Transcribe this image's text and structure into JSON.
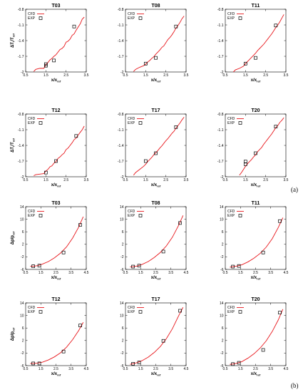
{
  "panel_labels": {
    "a": "(a)",
    "b": "(b)"
  },
  "legend": {
    "cfd": "CFD",
    "exp": "EXP"
  },
  "colors": {
    "cfd": "#e8161b",
    "exp": "#000000"
  },
  "chart_data": [
    {
      "id": "a-T03",
      "title": "T03",
      "type": "line",
      "xlabel": "x/x_ref",
      "ylabel": "ΔT_t/T_ref",
      "xlim": [
        0.5,
        3.5
      ],
      "ylim": [
        -2,
        -0.8
      ],
      "xticks": [
        "0.5",
        "1.5",
        "2.5",
        "3.5"
      ],
      "yticks": [
        "-2",
        "-1.7",
        "-1.4",
        "-1.1",
        "-0.8"
      ],
      "series": [
        {
          "name": "CFD",
          "x": [
            0.9,
            1.0,
            1.2,
            1.4,
            1.5,
            1.6,
            1.7,
            1.8,
            1.9,
            2.0,
            2.1,
            2.2,
            2.3,
            2.4,
            2.5,
            2.6,
            2.7,
            2.8,
            2.9,
            3.0,
            3.1,
            3.2,
            3.3,
            3.4
          ],
          "y": [
            -1.99,
            -1.95,
            -1.93,
            -1.93,
            -1.86,
            -1.82,
            -1.77,
            -1.74,
            -1.7,
            -1.67,
            -1.62,
            -1.57,
            -1.55,
            -1.51,
            -1.43,
            -1.41,
            -1.37,
            -1.3,
            -1.27,
            -1.2,
            -1.14,
            -1.08,
            -0.99,
            -0.95
          ]
        },
        {
          "name": "EXP",
          "x": [
            1.5,
            1.5,
            1.9,
            2.9
          ],
          "y": [
            -1.88,
            -1.85,
            -1.78,
            -1.13
          ]
        }
      ]
    },
    {
      "id": "a-T08",
      "title": "T08",
      "type": "line",
      "xlabel": "x/x_ref",
      "ylabel": "",
      "xlim": [
        0.5,
        3.5
      ],
      "ylim": [
        -2,
        -0.8
      ],
      "xticks": [
        "0.5",
        "1.5",
        "2.5",
        "3.5"
      ],
      "yticks": [
        "-2",
        "-1.7",
        "-1.4",
        "-1.1",
        "-0.8"
      ],
      "series": [
        {
          "name": "CFD",
          "x": [
            0.9,
            1.0,
            1.2,
            1.4,
            1.5,
            1.6,
            1.7,
            1.8,
            1.9,
            2.0,
            2.1,
            2.2,
            2.3,
            2.4,
            2.5,
            2.6,
            2.7,
            2.8,
            2.9,
            3.0,
            3.1,
            3.2,
            3.3,
            3.4
          ],
          "y": [
            -1.99,
            -1.95,
            -1.91,
            -1.88,
            -1.85,
            -1.81,
            -1.78,
            -1.74,
            -1.71,
            -1.66,
            -1.62,
            -1.58,
            -1.53,
            -1.5,
            -1.44,
            -1.38,
            -1.34,
            -1.29,
            -1.23,
            -1.16,
            -1.11,
            -1.05,
            -0.98,
            -0.93
          ]
        },
        {
          "name": "EXP",
          "x": [
            1.5,
            2.0,
            3.0
          ],
          "y": [
            -1.84,
            -1.73,
            -1.13
          ]
        }
      ]
    },
    {
      "id": "a-T11",
      "title": "T11",
      "type": "line",
      "xlabel": "x/x_ref",
      "ylabel": "",
      "xlim": [
        0.5,
        3.5
      ],
      "ylim": [
        -2,
        -0.8
      ],
      "xticks": [
        "0.5",
        "1.5",
        "2.5",
        "3.5"
      ],
      "yticks": [
        "-2",
        "-1.7",
        "-1.4",
        "-1.1",
        "-0.8"
      ],
      "series": [
        {
          "name": "CFD",
          "x": [
            0.9,
            1.0,
            1.2,
            1.4,
            1.5,
            1.6,
            1.7,
            1.8,
            1.9,
            2.0,
            2.1,
            2.2,
            2.3,
            2.4,
            2.5,
            2.6,
            2.7,
            2.8,
            2.9,
            3.0,
            3.1,
            3.2,
            3.3,
            3.4
          ],
          "y": [
            -2.0,
            -1.96,
            -1.93,
            -1.89,
            -1.84,
            -1.8,
            -1.76,
            -1.72,
            -1.68,
            -1.64,
            -1.59,
            -1.55,
            -1.51,
            -1.47,
            -1.42,
            -1.37,
            -1.32,
            -1.27,
            -1.21,
            -1.15,
            -1.1,
            -1.04,
            -0.97,
            -0.9
          ]
        },
        {
          "name": "EXP",
          "x": [
            1.5,
            2.0,
            3.0
          ],
          "y": [
            -1.84,
            -1.73,
            -1.11
          ]
        }
      ]
    },
    {
      "id": "a-T12",
      "title": "T12",
      "type": "line",
      "xlabel": "x/x_ref",
      "ylabel": "ΔT_t/T_ref",
      "xlim": [
        0.5,
        3.5
      ],
      "ylim": [
        -2,
        -0.8
      ],
      "xticks": [
        "0.5",
        "1.5",
        "2.5",
        "3.5"
      ],
      "yticks": [
        "-2",
        "-1.7",
        "-1.4",
        "-1.1",
        "-0.8"
      ],
      "series": [
        {
          "name": "CFD",
          "x": [
            0.9,
            1.0,
            1.2,
            1.4,
            1.5,
            1.6,
            1.7,
            1.8,
            1.9,
            2.0,
            2.1,
            2.2,
            2.3,
            2.4,
            2.5,
            2.6,
            2.7,
            2.8,
            2.9,
            3.0,
            3.1,
            3.2,
            3.3,
            3.4
          ],
          "y": [
            -1.98,
            -1.96,
            -1.95,
            -1.94,
            -1.89,
            -1.86,
            -1.81,
            -1.79,
            -1.74,
            -1.71,
            -1.65,
            -1.62,
            -1.58,
            -1.55,
            -1.48,
            -1.45,
            -1.4,
            -1.35,
            -1.29,
            -1.26,
            -1.2,
            -1.15,
            -1.1,
            -1.03
          ]
        },
        {
          "name": "EXP",
          "x": [
            1.5,
            2.0,
            3.0
          ],
          "y": [
            -1.92,
            -1.7,
            -1.22
          ]
        }
      ]
    },
    {
      "id": "a-T17",
      "title": "T17",
      "type": "line",
      "xlabel": "x/x_ref",
      "ylabel": "",
      "xlim": [
        0.5,
        3.5
      ],
      "ylim": [
        -2,
        -0.8
      ],
      "xticks": [
        "0.5",
        "1.5",
        "2.5",
        "3.5"
      ],
      "yticks": [
        "-2",
        "-1.7",
        "-1.4",
        "-1.1",
        "-0.8"
      ],
      "series": [
        {
          "name": "CFD",
          "x": [
            0.9,
            1.0,
            1.2,
            1.4,
            1.5,
            1.6,
            1.7,
            1.8,
            1.9,
            2.0,
            2.1,
            2.2,
            2.3,
            2.4,
            2.5,
            2.6,
            2.7,
            2.8,
            2.9,
            3.0,
            3.1,
            3.2,
            3.3,
            3.4
          ],
          "y": [
            -1.97,
            -1.92,
            -1.86,
            -1.8,
            -1.76,
            -1.71,
            -1.67,
            -1.63,
            -1.58,
            -1.54,
            -1.5,
            -1.45,
            -1.41,
            -1.36,
            -1.31,
            -1.27,
            -1.22,
            -1.17,
            -1.13,
            -1.07,
            -1.02,
            -0.97,
            -0.91,
            -0.86
          ]
        },
        {
          "name": "EXP",
          "x": [
            1.5,
            2.0,
            3.0
          ],
          "y": [
            -1.7,
            -1.55,
            -1.05
          ]
        }
      ]
    },
    {
      "id": "a-T20",
      "title": "T20",
      "type": "line",
      "xlabel": "x/x_ref",
      "ylabel": "",
      "xlim": [
        0.5,
        3.5
      ],
      "ylim": [
        -2,
        -0.8
      ],
      "xticks": [
        "0.5",
        "1.5",
        "2.5",
        "3.5"
      ],
      "yticks": [
        "-2",
        "-1.7",
        "-1.4",
        "-1.1",
        "-0.8"
      ],
      "series": [
        {
          "name": "CFD",
          "x": [
            1.2,
            1.3,
            1.4,
            1.5,
            1.6,
            1.7,
            1.8,
            1.9,
            2.0,
            2.1,
            2.2,
            2.3,
            2.4,
            2.5,
            2.6,
            2.7,
            2.8,
            2.9,
            3.0,
            3.1,
            3.2,
            3.3,
            3.4
          ],
          "y": [
            -1.97,
            -1.92,
            -1.86,
            -1.8,
            -1.75,
            -1.71,
            -1.67,
            -1.62,
            -1.58,
            -1.52,
            -1.48,
            -1.44,
            -1.38,
            -1.33,
            -1.28,
            -1.23,
            -1.18,
            -1.12,
            -1.06,
            -1.02,
            -0.96,
            -0.92,
            -0.87
          ]
        },
        {
          "name": "EXP",
          "x": [
            1.5,
            1.5,
            2.0,
            3.0
          ],
          "y": [
            -1.71,
            -1.76,
            -1.55,
            -1.04
          ]
        }
      ]
    },
    {
      "id": "b-T03",
      "title": "T03",
      "type": "line",
      "xlabel": "x/x_ref",
      "ylabel": "Δp/p_ref",
      "xlim": [
        0.5,
        4.5
      ],
      "ylim": [
        -6,
        14
      ],
      "xticks": [
        "0.5",
        "1.5",
        "2.5",
        "3.5",
        "4.5"
      ],
      "yticks": [
        "-6",
        "-2",
        "2",
        "6",
        "10",
        "14"
      ],
      "series": [
        {
          "name": "CFD",
          "x": [
            0.8,
            1.0,
            1.3,
            1.6,
            2.0,
            2.4,
            2.8,
            3.2,
            3.6,
            4.0,
            4.3
          ],
          "y": [
            -5.0,
            -5.0,
            -4.8,
            -4.3,
            -3.5,
            -2.3,
            -0.8,
            1.2,
            4.0,
            7.5,
            10.8
          ]
        },
        {
          "name": "EXP",
          "x": [
            1.0,
            1.4,
            3.0,
            4.1
          ],
          "y": [
            -5.0,
            -4.8,
            -0.6,
            8.2
          ]
        }
      ]
    },
    {
      "id": "b-T08",
      "title": "T08",
      "type": "line",
      "xlabel": "x/x_ref",
      "ylabel": "",
      "xlim": [
        0.5,
        4.5
      ],
      "ylim": [
        -6,
        14
      ],
      "xticks": [
        "0.5",
        "1.5",
        "2.5",
        "3.5",
        "4.5"
      ],
      "yticks": [
        "-6",
        "-2",
        "2",
        "6",
        "10",
        "14"
      ],
      "series": [
        {
          "name": "CFD",
          "x": [
            0.8,
            1.0,
            1.3,
            1.6,
            2.0,
            2.4,
            2.8,
            3.2,
            3.6,
            4.0,
            4.3
          ],
          "y": [
            -5.2,
            -5.1,
            -4.9,
            -4.4,
            -3.5,
            -2.2,
            -0.6,
            1.5,
            4.3,
            8.0,
            11.2
          ]
        },
        {
          "name": "EXP",
          "x": [
            1.0,
            1.4,
            3.0,
            4.1
          ],
          "y": [
            -5.1,
            -4.8,
            -0.3,
            8.8
          ]
        }
      ]
    },
    {
      "id": "b-T11",
      "title": "T11",
      "type": "line",
      "xlabel": "x/x_ref",
      "ylabel": "",
      "xlim": [
        0.5,
        4.5
      ],
      "ylim": [
        -6,
        14
      ],
      "xticks": [
        "0.5",
        "1.5",
        "2.5",
        "3.5",
        "4.5"
      ],
      "yticks": [
        "-6",
        "-2",
        "2",
        "6",
        "10",
        "14"
      ],
      "series": [
        {
          "name": "CFD",
          "x": [
            0.8,
            1.0,
            1.3,
            1.6,
            2.0,
            2.4,
            2.8,
            3.2,
            3.6,
            4.0,
            4.3
          ],
          "y": [
            -5.3,
            -5.1,
            -4.9,
            -4.5,
            -3.6,
            -2.4,
            -0.9,
            1.1,
            3.8,
            7.4,
            10.5
          ]
        },
        {
          "name": "EXP",
          "x": [
            1.0,
            1.4,
            3.0,
            4.1
          ],
          "y": [
            -5.1,
            -4.9,
            -0.6,
            9.4
          ]
        }
      ]
    },
    {
      "id": "b-T12",
      "title": "T12",
      "type": "line",
      "xlabel": "x/x_ref",
      "ylabel": "Δp/p_ref",
      "xlim": [
        0.5,
        4.5
      ],
      "ylim": [
        -6,
        14
      ],
      "xticks": [
        "0.5",
        "1.5",
        "2.5",
        "3.5",
        "4.5"
      ],
      "yticks": [
        "-6",
        "-2",
        "2",
        "6",
        "10",
        "14"
      ],
      "series": [
        {
          "name": "CFD",
          "x": [
            0.8,
            1.0,
            1.3,
            1.6,
            2.0,
            2.4,
            2.8,
            3.2,
            3.6,
            4.0,
            4.3
          ],
          "y": [
            -5.3,
            -5.3,
            -5.2,
            -4.9,
            -4.2,
            -3.2,
            -1.9,
            -0.1,
            2.3,
            5.2,
            7.8
          ]
        },
        {
          "name": "EXP",
          "x": [
            1.0,
            1.4,
            3.0,
            4.1
          ],
          "y": [
            -5.3,
            -5.3,
            -1.5,
            6.8
          ]
        }
      ]
    },
    {
      "id": "b-T17",
      "title": "T17",
      "type": "line",
      "xlabel": "x/x_ref",
      "ylabel": "",
      "xlim": [
        0.5,
        4.5
      ],
      "ylim": [
        -6,
        14
      ],
      "xticks": [
        "0.5",
        "1.5",
        "2.5",
        "3.5",
        "4.5"
      ],
      "yticks": [
        "-6",
        "-2",
        "2",
        "6",
        "10",
        "14"
      ],
      "series": [
        {
          "name": "CFD",
          "x": [
            0.8,
            1.0,
            1.3,
            1.6,
            2.0,
            2.4,
            2.8,
            3.2,
            3.6,
            4.0,
            4.3
          ],
          "y": [
            -5.6,
            -5.4,
            -5.0,
            -4.4,
            -3.3,
            -1.8,
            0.1,
            2.6,
            5.8,
            9.8,
            12.6
          ]
        },
        {
          "name": "EXP",
          "x": [
            1.0,
            1.4,
            3.0,
            4.1
          ],
          "y": [
            -5.4,
            -5.0,
            1.9,
            11.5
          ]
        }
      ]
    },
    {
      "id": "b-T20",
      "title": "T20",
      "type": "line",
      "xlabel": "x/x_ref",
      "ylabel": "",
      "xlim": [
        0.5,
        4.5
      ],
      "ylim": [
        -6,
        14
      ],
      "xticks": [
        "0.5",
        "1.5",
        "2.5",
        "3.5",
        "4.5"
      ],
      "yticks": [
        "-6",
        "-2",
        "2",
        "6",
        "10",
        "14"
      ],
      "series": [
        {
          "name": "CFD",
          "x": [
            0.8,
            1.0,
            1.3,
            1.6,
            2.0,
            2.4,
            2.8,
            3.2,
            3.6,
            4.0,
            4.3
          ],
          "y": [
            -5.6,
            -5.5,
            -5.2,
            -4.7,
            -3.6,
            -2.2,
            -0.4,
            1.9,
            4.9,
            8.6,
            12.0
          ]
        },
        {
          "name": "EXP",
          "x": [
            1.0,
            1.4,
            3.0,
            4.1
          ],
          "y": [
            -5.5,
            -5.1,
            -1.0,
            10.9
          ]
        }
      ]
    }
  ]
}
